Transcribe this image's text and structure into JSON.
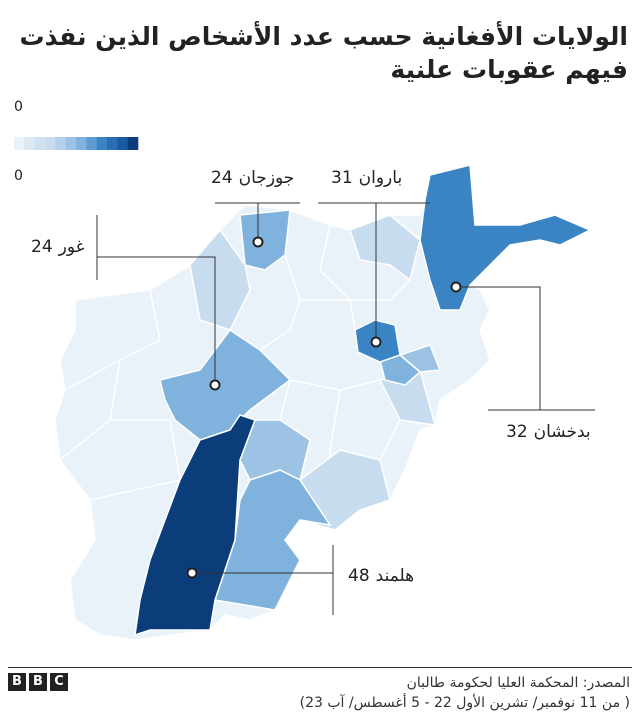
{
  "title": "الولايات الأفغانية حسب عدد الأشخاص الذين نفذت فيهم عقوبات علنية",
  "legend": {
    "top_label": "0",
    "bottom_label": "0",
    "colors": [
      "#e9f1f9",
      "#dce8f4",
      "#d0e1f1",
      "#c8dcef",
      "#b4d0ea",
      "#9cc3e4",
      "#7fb2dc",
      "#5e9dd2",
      "#3a84c4",
      "#2a6fb3",
      "#1b5aa0",
      "#0b3d7a"
    ]
  },
  "callouts": [
    {
      "name": "جوزجان",
      "value": 24,
      "color": "#7fb2dc"
    },
    {
      "name": "باروان",
      "value": 31,
      "color": "#3a84c4"
    },
    {
      "name": "غور",
      "value": 24,
      "color": "#7fb2dc"
    },
    {
      "name": "بدخشان",
      "value": 32,
      "color": "#3a84c4"
    },
    {
      "name": "هلمند",
      "value": 48,
      "color": "#0b3d7a"
    }
  ],
  "source": "المصدر: المحكمة العليا لحكومة طالبان",
  "source_note": "( من 11 نوفمبر/ تشرين الأول 22 - 5 أغسطس/ آب 23)",
  "logo": [
    "B",
    "B",
    "C"
  ]
}
